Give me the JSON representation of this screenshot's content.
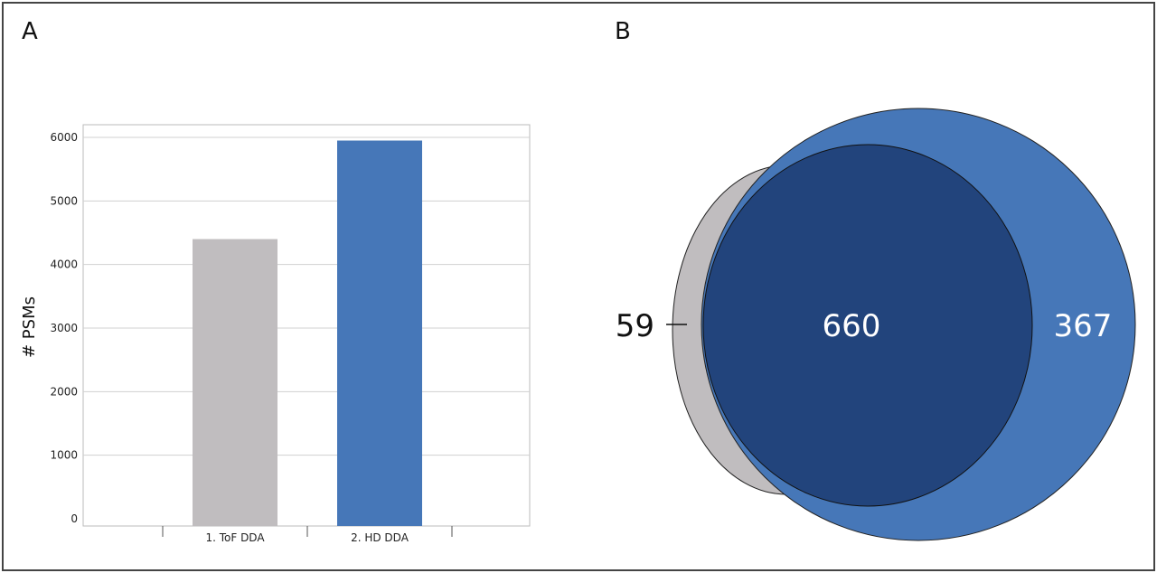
{
  "panels": {
    "a_label": "A",
    "b_label": "B"
  },
  "chart_data": [
    {
      "type": "bar",
      "categories": [
        "1. ToF DDA",
        "2. HD DDA"
      ],
      "values": [
        4400,
        5950
      ],
      "colors": [
        "#c0bdbf",
        "#4677b8"
      ],
      "title": "",
      "xlabel": "",
      "ylabel": "# PSMs",
      "ylim": [
        0,
        6200
      ],
      "yticks": [
        0,
        1000,
        2000,
        3000,
        4000,
        5000,
        6000
      ],
      "grid": true
    },
    {
      "type": "venn",
      "sets": [
        {
          "only_count": "59",
          "color": "#c0bdbf"
        },
        {
          "only_count": "367",
          "color": "#4677b8"
        }
      ],
      "overlap_count": "660",
      "overlap_color": "#22447c"
    }
  ]
}
